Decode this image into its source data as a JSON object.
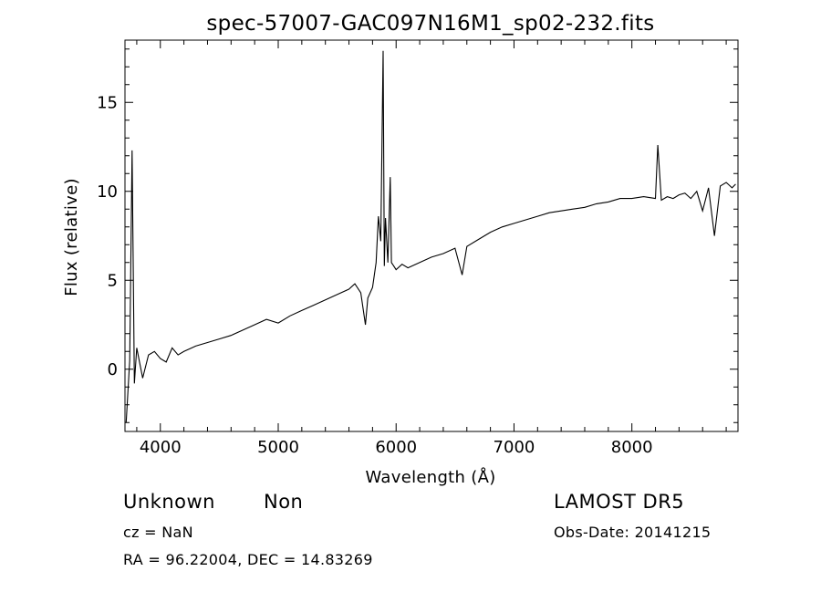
{
  "chart_data": {
    "type": "line",
    "title": "spec-57007-GAC097N16M1_sp02-232.fits",
    "xlabel": "Wavelength (Å)",
    "ylabel": "Flux (relative)",
    "xlim": [
      3700,
      8900
    ],
    "ylim": [
      -3.5,
      18.5
    ],
    "x_ticks": [
      4000,
      5000,
      6000,
      7000,
      8000
    ],
    "y_ticks": [
      0,
      5,
      10,
      15
    ],
    "grid": false,
    "legend": "none",
    "line_color": "#000000",
    "series": [
      {
        "x": [
          3710,
          3740,
          3760,
          3780,
          3800,
          3850,
          3900,
          3950,
          4000,
          4050,
          4100,
          4150,
          4200,
          4300,
          4400,
          4500,
          4600,
          4700,
          4800,
          4900,
          5000,
          5100,
          5200,
          5300,
          5400,
          5500,
          5600,
          5650,
          5700,
          5740,
          5760,
          5800,
          5830,
          5850,
          5870,
          5890,
          5900,
          5910,
          5930,
          5950,
          5960,
          5980,
          6000,
          6050,
          6100,
          6200,
          6300,
          6400,
          6500,
          6560,
          6600,
          6700,
          6800,
          6900,
          7000,
          7100,
          7200,
          7300,
          7400,
          7500,
          7600,
          7700,
          7800,
          7900,
          8000,
          8100,
          8200,
          8220,
          8250,
          8300,
          8350,
          8400,
          8450,
          8500,
          8550,
          8600,
          8650,
          8700,
          8750,
          8800,
          8850,
          8880
        ],
        "y": [
          -3.0,
          0.5,
          12.3,
          -0.8,
          1.2,
          -0.5,
          0.8,
          1.0,
          0.6,
          0.4,
          1.2,
          0.8,
          1.0,
          1.3,
          1.5,
          1.7,
          1.9,
          2.2,
          2.5,
          2.8,
          2.6,
          3.0,
          3.3,
          3.6,
          3.9,
          4.2,
          4.5,
          4.8,
          4.3,
          2.5,
          4.0,
          4.6,
          6.0,
          8.6,
          7.2,
          17.9,
          5.8,
          8.5,
          6.0,
          10.8,
          6.0,
          5.8,
          5.6,
          5.9,
          5.7,
          6.0,
          6.3,
          6.5,
          6.8,
          5.3,
          6.9,
          7.3,
          7.7,
          8.0,
          8.2,
          8.4,
          8.6,
          8.8,
          8.9,
          9.0,
          9.1,
          9.3,
          9.4,
          9.6,
          9.6,
          9.7,
          9.6,
          12.6,
          9.5,
          9.7,
          9.6,
          9.8,
          9.9,
          9.6,
          10.0,
          8.9,
          10.2,
          7.5,
          10.3,
          10.5,
          10.2,
          10.4
        ]
      }
    ]
  },
  "info": {
    "classification": "Unknown",
    "subclass": "Non",
    "survey": "LAMOST DR5",
    "cz": "cz = NaN",
    "obs_date": "Obs-Date: 20141215",
    "coords": "RA =  96.22004, DEC =  14.83269"
  }
}
